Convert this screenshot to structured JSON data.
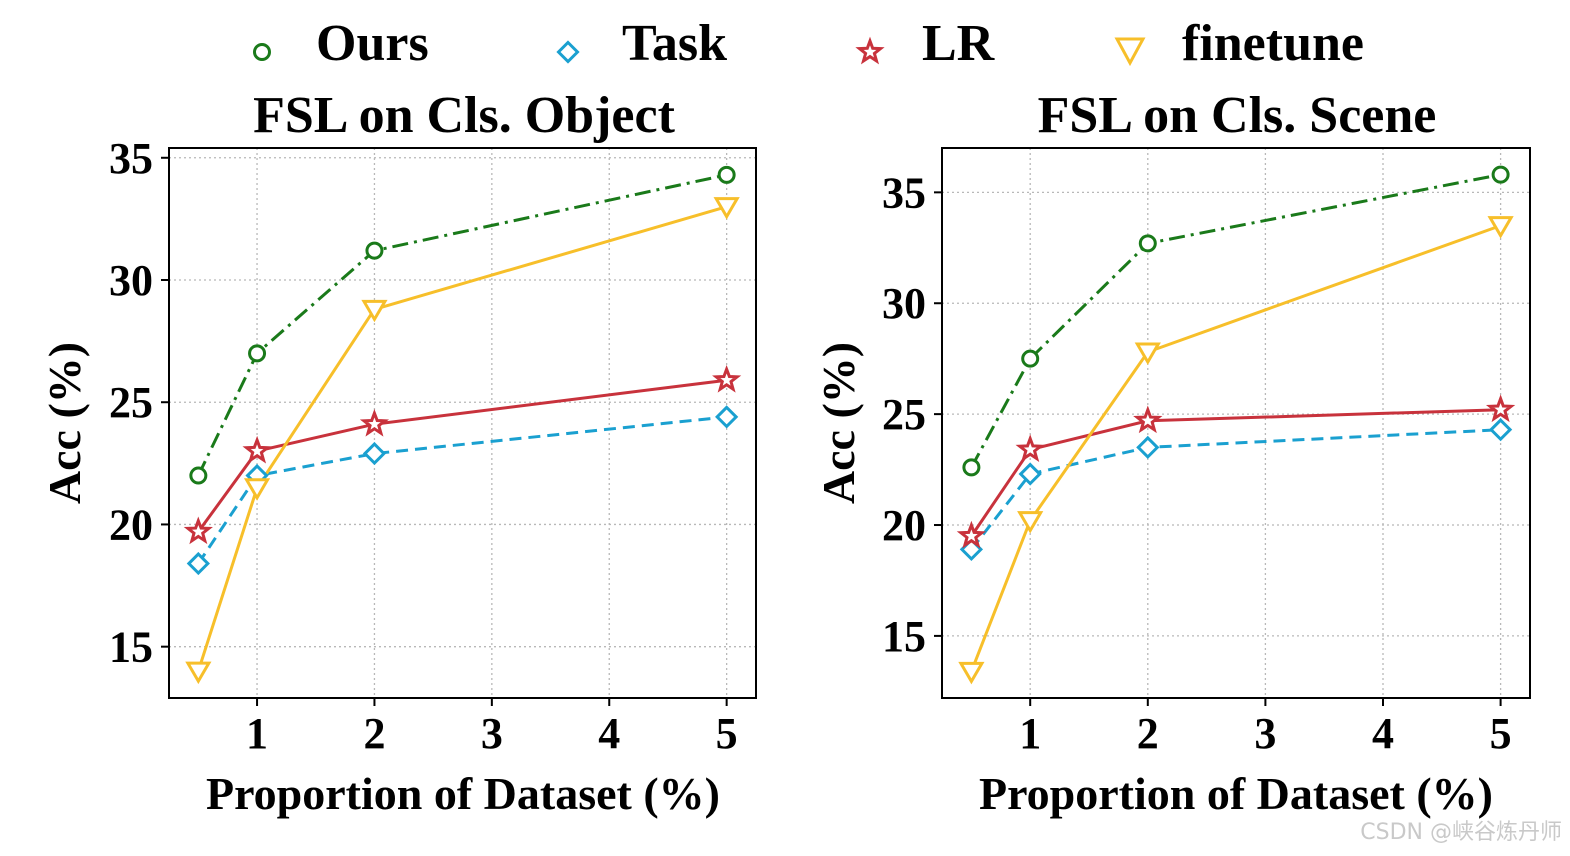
{
  "legend": [
    {
      "name": "Ours",
      "marker": "circle",
      "color": "#1a7a1a"
    },
    {
      "name": "Task",
      "marker": "diamond",
      "color": "#1aa0d0"
    },
    {
      "name": "LR",
      "marker": "star",
      "color": "#c8323c"
    },
    {
      "name": "finetune",
      "marker": "triangle-down",
      "color": "#f7bf2a"
    }
  ],
  "chart_data": [
    {
      "type": "line",
      "title": "FSL on Cls. Object",
      "xlabel": "Proportion of Dataset (%)",
      "ylabel": "Acc (%)",
      "x": [
        0.5,
        1,
        2,
        5
      ],
      "xlim": [
        0.25,
        5.25
      ],
      "ylim": [
        12.9,
        35.4
      ],
      "xticks": [
        1,
        2,
        3,
        4,
        5
      ],
      "yticks": [
        15,
        20,
        25,
        30,
        35
      ],
      "grid": true,
      "series": [
        {
          "name": "Ours",
          "values": [
            22.0,
            27.0,
            31.2,
            34.3
          ],
          "color": "#1a7a1a",
          "style": "dashdot",
          "marker": "circle"
        },
        {
          "name": "Task",
          "values": [
            18.4,
            22.0,
            22.9,
            24.4
          ],
          "color": "#1aa0d0",
          "style": "dashed",
          "marker": "diamond"
        },
        {
          "name": "LR",
          "values": [
            19.7,
            23.0,
            24.1,
            25.9
          ],
          "color": "#c8323c",
          "style": "solid",
          "marker": "star"
        },
        {
          "name": "finetune",
          "values": [
            14.0,
            21.5,
            28.8,
            33.0
          ],
          "color": "#f7bf2a",
          "style": "solid",
          "marker": "triangle-down"
        }
      ]
    },
    {
      "type": "line",
      "title": "FSL on Cls. Scene",
      "xlabel": "Proportion of Dataset (%)",
      "ylabel": "Acc (%)",
      "x": [
        0.5,
        1,
        2,
        5
      ],
      "xlim": [
        0.25,
        5.25
      ],
      "ylim": [
        12.2,
        37.0
      ],
      "xticks": [
        1,
        2,
        3,
        4,
        5
      ],
      "yticks": [
        15,
        20,
        25,
        30,
        35
      ],
      "grid": true,
      "series": [
        {
          "name": "Ours",
          "values": [
            22.6,
            27.5,
            32.7,
            35.8
          ],
          "color": "#1a7a1a",
          "style": "dashdot",
          "marker": "circle"
        },
        {
          "name": "Task",
          "values": [
            18.9,
            22.3,
            23.5,
            24.3
          ],
          "color": "#1aa0d0",
          "style": "dashed",
          "marker": "diamond"
        },
        {
          "name": "LR",
          "values": [
            19.5,
            23.4,
            24.7,
            25.2
          ],
          "color": "#c8323c",
          "style": "solid",
          "marker": "star"
        },
        {
          "name": "finetune",
          "values": [
            13.4,
            20.2,
            27.8,
            33.5
          ],
          "color": "#f7bf2a",
          "style": "solid",
          "marker": "triangle-down"
        }
      ]
    }
  ],
  "watermark": "CSDN @峡谷炼丹师"
}
